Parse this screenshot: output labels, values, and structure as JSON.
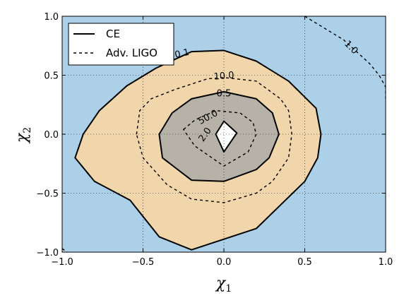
{
  "chart_data": {
    "type": "contour",
    "xlabel": "χ",
    "xlabel_sub": "1",
    "ylabel": "χ",
    "ylabel_sub": "2",
    "xlim": [
      -1.0,
      1.0
    ],
    "ylim": [
      -1.0,
      1.0
    ],
    "xticks": [
      "−1.0",
      "−0.5",
      "0.0",
      "0.5",
      "1.0"
    ],
    "xtick_values": [
      -1.0,
      -0.5,
      0.0,
      0.5,
      1.0
    ],
    "yticks": [
      "−1.0",
      "−0.5",
      "0.0",
      "0.5",
      "1.0"
    ],
    "ytick_values": [
      -1.0,
      -0.5,
      0.0,
      0.5,
      1.0
    ],
    "grid": true,
    "legend_position": "top-left",
    "legend": [
      {
        "label": "CE",
        "style": "solid"
      },
      {
        "label": "Adv. LIGO",
        "style": "dashed"
      }
    ],
    "fill_colors": {
      "background": "#abd0e8",
      "level_0_1": "#f0d6aa",
      "level_0_5": "#b7b2a8",
      "level_2_0": "#ffffff"
    },
    "contours": {
      "CE": [
        {
          "level": "0.1",
          "points": [
            [
              -0.92,
              -0.2
            ],
            [
              -0.87,
              0.0
            ],
            [
              -0.77,
              0.2
            ],
            [
              -0.6,
              0.41
            ],
            [
              -0.42,
              0.56
            ],
            [
              -0.2,
              0.7
            ],
            [
              0.0,
              0.71
            ],
            [
              0.2,
              0.62
            ],
            [
              0.4,
              0.45
            ],
            [
              0.57,
              0.22
            ],
            [
              0.6,
              0.0
            ],
            [
              0.58,
              -0.2
            ],
            [
              0.5,
              -0.4
            ],
            [
              0.35,
              -0.6
            ],
            [
              0.2,
              -0.8
            ],
            [
              -0.2,
              -0.98
            ],
            [
              -0.4,
              -0.87
            ],
            [
              -0.58,
              -0.56
            ],
            [
              -0.8,
              -0.4
            ]
          ]
        },
        {
          "level": "0.5",
          "points": [
            [
              -0.4,
              0.0
            ],
            [
              -0.32,
              0.18
            ],
            [
              -0.2,
              0.3
            ],
            [
              0.0,
              0.36
            ],
            [
              0.2,
              0.3
            ],
            [
              0.3,
              0.18
            ],
            [
              0.34,
              0.0
            ],
            [
              0.28,
              -0.2
            ],
            [
              0.2,
              -0.3
            ],
            [
              0.0,
              -0.4
            ],
            [
              -0.2,
              -0.39
            ],
            [
              -0.38,
              -0.2
            ]
          ]
        },
        {
          "level": "2.0",
          "points": [
            [
              0.0,
              0.11
            ],
            [
              0.08,
              0.01
            ],
            [
              0.0,
              -0.15
            ],
            [
              -0.05,
              0.0
            ]
          ]
        }
      ],
      "Adv_LIGO": [
        {
          "level": "1.0",
          "points": [
            [
              0.5,
              1.0
            ],
            [
              0.62,
              0.9
            ],
            [
              0.74,
              0.8
            ],
            [
              0.82,
              0.7
            ],
            [
              0.9,
              0.6
            ],
            [
              0.96,
              0.5
            ],
            [
              1.0,
              0.4
            ],
            [
              1.0,
              0.3
            ]
          ]
        },
        {
          "level": "1.0",
          "points": [
            [
              -1.0,
              -0.97
            ],
            [
              -0.97,
              -1.0
            ]
          ]
        },
        {
          "level": "10.0",
          "points": [
            [
              -0.54,
              0.0
            ],
            [
              -0.52,
              0.2
            ],
            [
              -0.45,
              0.3
            ],
            [
              -0.3,
              0.38
            ],
            [
              -0.1,
              0.47
            ],
            [
              0.0,
              0.48
            ],
            [
              0.2,
              0.45
            ],
            [
              0.35,
              0.3
            ],
            [
              0.4,
              0.2
            ],
            [
              0.42,
              0.0
            ],
            [
              0.4,
              -0.2
            ],
            [
              0.3,
              -0.4
            ],
            [
              0.2,
              -0.5
            ],
            [
              0.0,
              -0.58
            ],
            [
              -0.2,
              -0.55
            ],
            [
              -0.35,
              -0.43
            ],
            [
              -0.5,
              -0.2
            ]
          ]
        },
        {
          "level": "50.0",
          "points": [
            [
              -0.25,
              0.04
            ],
            [
              -0.18,
              0.12
            ],
            [
              -0.05,
              0.2
            ],
            [
              0.1,
              0.18
            ],
            [
              0.18,
              0.1
            ],
            [
              0.2,
              0.0
            ],
            [
              0.15,
              -0.15
            ],
            [
              0.0,
              -0.27
            ],
            [
              -0.18,
              -0.1
            ]
          ]
        }
      ]
    },
    "contour_labels": [
      {
        "text": "0.1",
        "x": -0.26,
        "y": 0.69,
        "angle": -12
      },
      {
        "text": "10.0",
        "x": 0.0,
        "y": 0.5,
        "angle": -5
      },
      {
        "text": "0.5",
        "x": 0.0,
        "y": 0.35,
        "angle": 0
      },
      {
        "text": "50.0",
        "x": -0.1,
        "y": 0.15,
        "angle": -28
      },
      {
        "text": "2.0",
        "x": -0.12,
        "y": 0.0,
        "angle": -55
      },
      {
        "text": "1.0",
        "x": 0.79,
        "y": 0.74,
        "angle": 45
      }
    ]
  }
}
